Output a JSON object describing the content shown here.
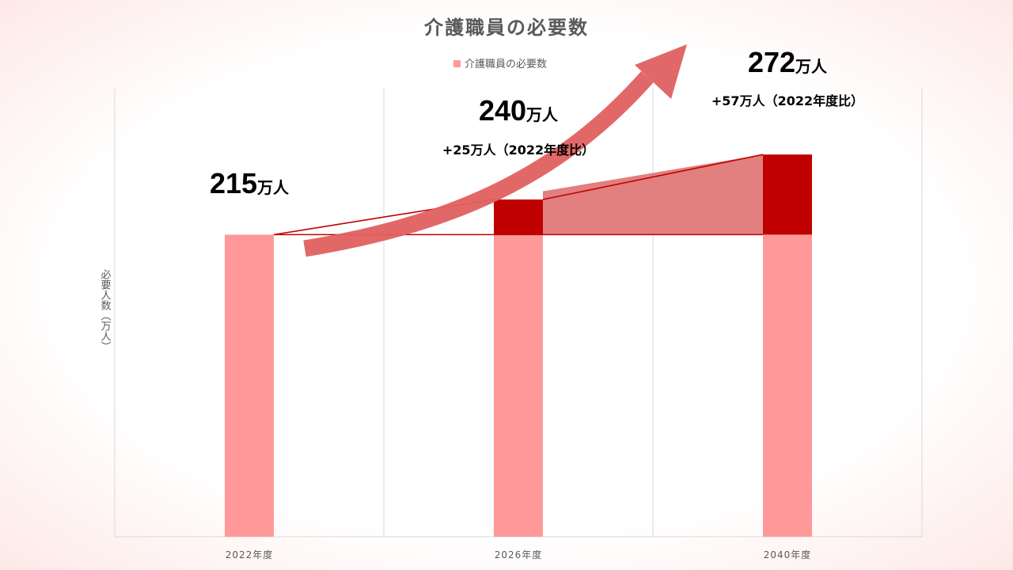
{
  "chart_data": {
    "type": "bar",
    "title": "介護職員の必要数",
    "ylabel": "必要人数（万人）",
    "xlabel": "",
    "categories": [
      "2022年度",
      "2026年度",
      "2040年度"
    ],
    "series": [
      {
        "name": "介護職員の必要数",
        "values": [
          215,
          240,
          272
        ]
      }
    ],
    "increments": [
      0,
      25,
      57
    ],
    "value_labels": [
      {
        "number": "215",
        "unit": "万人",
        "delta": ""
      },
      {
        "number": "240",
        "unit": "万人",
        "delta": "+25万人（2022年度比）"
      },
      {
        "number": "272",
        "unit": "万人",
        "delta": "+57万人（2022年度比）"
      }
    ],
    "ylim": [
      0,
      320
    ],
    "grid": "vertical",
    "legend_position": "top-center"
  },
  "colors": {
    "bar": "#ff9999",
    "increase": "#c00000",
    "area": "#e07878",
    "line": "#c00000",
    "arrow": "#e06060",
    "grid": "#d9d9d9",
    "text": "#595959"
  }
}
